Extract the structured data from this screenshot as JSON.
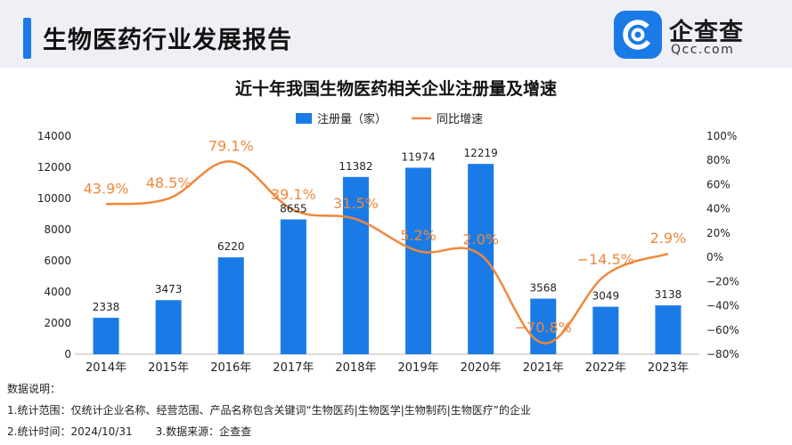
{
  "header": {
    "report_title": "生物医药行业发展报告",
    "brand_cn": "企查查",
    "brand_en": "Qcc.com",
    "accent_color": "#1a7be6"
  },
  "chart_data": {
    "type": "bar",
    "title": "近十年我国生物医药相关企业注册量及增速",
    "categories": [
      "2014年",
      "2015年",
      "2016年",
      "2017年",
      "2018年",
      "2019年",
      "2020年",
      "2021年",
      "2022年",
      "2023年"
    ],
    "series": [
      {
        "name": "注册量（家）",
        "type": "bar",
        "axis": "left",
        "color": "#1a7be6",
        "values": [
          2338,
          3473,
          6220,
          8655,
          11382,
          11974,
          12219,
          3568,
          3049,
          3138
        ],
        "labels": [
          "2338",
          "3473",
          "6220",
          "8655",
          "11382",
          "11974",
          "12219",
          "3568",
          "3049",
          "3138"
        ]
      },
      {
        "name": "同比增速",
        "type": "line",
        "axis": "right",
        "color": "#f0883c",
        "values": [
          43.9,
          48.5,
          79.1,
          39.1,
          31.5,
          5.2,
          2.0,
          -70.8,
          -14.5,
          2.9
        ],
        "labels": [
          "43.9%",
          "48.5%",
          "79.1%",
          "39.1%",
          "31.5%",
          "5.2%",
          "2.0%",
          "−70.8%",
          "−14.5%",
          "2.9%"
        ]
      }
    ],
    "ylim_left": [
      0,
      14000
    ],
    "yticks_left": [
      "0",
      "2000",
      "4000",
      "6000",
      "8000",
      "10000",
      "12000",
      "14000"
    ],
    "ylim_right": [
      -80,
      100
    ],
    "yticks_right": [
      "−80%",
      "−60%",
      "−40%",
      "−20%",
      "0%",
      "20%",
      "40%",
      "60%",
      "80%",
      "100%"
    ],
    "legend_position": "top-center",
    "grid": false
  },
  "notes": {
    "heading": "数据说明：",
    "scope": "1.统计范围：仅统计企业名称、经营范围、产品名称包含关键词“生物医药|生物医学|生物制药|生物医疗”的企业",
    "time": "2.统计时间：2024/10/31",
    "source": "3.数据来源：企查查"
  }
}
